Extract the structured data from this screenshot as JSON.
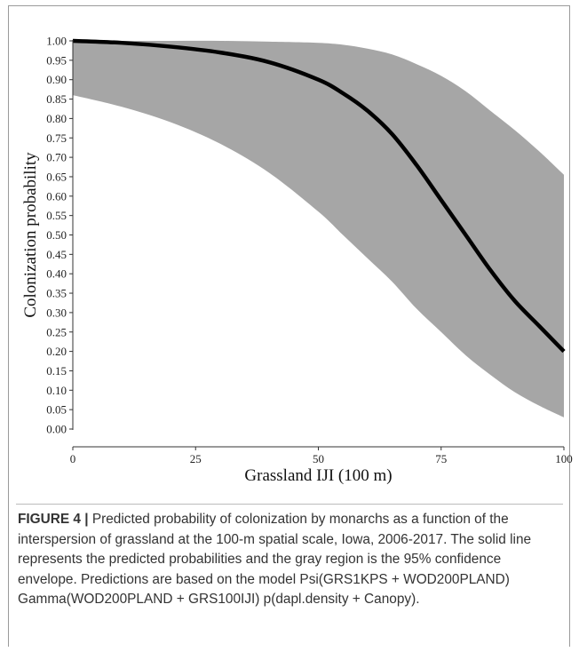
{
  "caption": {
    "label": "FIGURE 4 |",
    "text": " Predicted probability of colonization by monarchs as a function of the interspersion of grassland at the 100-m spatial scale, Iowa, 2006-2017. The solid line represents the predicted probabilities and the gray region is the 95% confidence envelope. Predictions are based on the model Psi(GRS1KPS + WOD200PLAND) Gamma(WOD200PLAND + GRS100IJI) p(dapl.density + Canopy)."
  },
  "chart_data": {
    "type": "line",
    "title": "",
    "xlabel": "Grassland IJI (100 m)",
    "ylabel": "Colonization probability",
    "xlim": [
      0,
      100
    ],
    "ylim": [
      0,
      1
    ],
    "xticks": [
      0,
      25,
      50,
      75,
      100
    ],
    "yticks": [
      0.0,
      0.05,
      0.1,
      0.15,
      0.2,
      0.25,
      0.3,
      0.35,
      0.4,
      0.45,
      0.5,
      0.55,
      0.6,
      0.65,
      0.7,
      0.75,
      0.8,
      0.85,
      0.9,
      0.95,
      1.0
    ],
    "grid": false,
    "line_color": "#000000",
    "band_color": "#a6a6a6",
    "x": [
      0,
      10,
      20,
      30,
      40,
      50,
      55,
      60,
      65,
      70,
      75,
      80,
      85,
      90,
      95,
      100
    ],
    "series": [
      {
        "role": "predicted",
        "values": [
          1.0,
          0.995,
          0.985,
          0.97,
          0.945,
          0.9,
          0.865,
          0.82,
          0.76,
          0.68,
          0.59,
          0.5,
          0.41,
          0.33,
          0.265,
          0.2
        ]
      },
      {
        "role": "lower",
        "values": [
          0.86,
          0.83,
          0.79,
          0.735,
          0.66,
          0.56,
          0.5,
          0.44,
          0.38,
          0.31,
          0.25,
          0.19,
          0.14,
          0.095,
          0.06,
          0.03
        ]
      },
      {
        "role": "upper",
        "values": [
          1.0,
          1.0,
          1.0,
          1.0,
          0.998,
          0.995,
          0.99,
          0.98,
          0.965,
          0.94,
          0.91,
          0.87,
          0.82,
          0.77,
          0.715,
          0.655
        ]
      }
    ]
  }
}
